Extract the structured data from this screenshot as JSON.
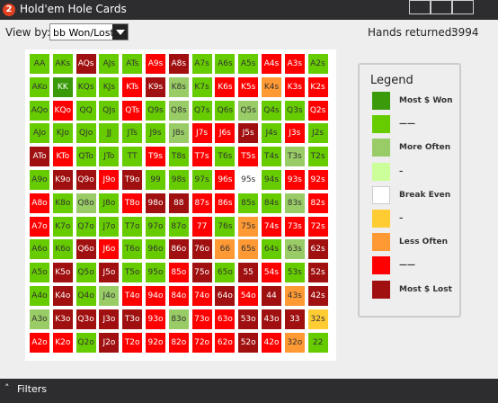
{
  "window": {
    "title": "Hold'em Hole Cards",
    "icon": "2"
  },
  "toolbar": {
    "view_by_label": "View by:",
    "view_by_value": "bb Won/Lost",
    "hands_label": "Hands returned:",
    "hands_value": "3994"
  },
  "legend": {
    "title": "Legend",
    "items": [
      {
        "label": "Most $ Won",
        "color": "#3a9a0a"
      },
      {
        "label": "——",
        "color": "#66cc00"
      },
      {
        "label": "More Often",
        "color": "#99cc66"
      },
      {
        "label": "–",
        "color": "#ccff99"
      },
      {
        "label": "Break Even",
        "color": "#ffffff"
      },
      {
        "label": "–",
        "color": "#ffcc33"
      },
      {
        "label": "Less Often",
        "color": "#ff9933"
      },
      {
        "label": "——",
        "color": "#ff0000"
      },
      {
        "label": "Most $ Lost",
        "color": "#a01010"
      }
    ]
  },
  "grid": {
    "rows": [
      [
        "AA",
        "AKs",
        "AQs",
        "AJs",
        "ATs",
        "A9s",
        "A8s",
        "A7s",
        "A6s",
        "A5s",
        "A4s",
        "A3s",
        "A2s"
      ],
      [
        "AKo",
        "KK",
        "KQs",
        "KJs",
        "KTs",
        "K9s",
        "K8s",
        "K7s",
        "K6s",
        "K5s",
        "K4s",
        "K3s",
        "K2s"
      ],
      [
        "AQo",
        "KQo",
        "QQ",
        "QJs",
        "QTs",
        "Q9s",
        "Q8s",
        "Q7s",
        "Q6s",
        "Q5s",
        "Q4s",
        "Q3s",
        "Q2s"
      ],
      [
        "AJo",
        "KJo",
        "QJo",
        "JJ",
        "JTs",
        "J9s",
        "J8s",
        "J7s",
        "J6s",
        "J5s",
        "J4s",
        "J3s",
        "J2s"
      ],
      [
        "ATo",
        "KTo",
        "QTo",
        "JTo",
        "TT",
        "T9s",
        "T8s",
        "T7s",
        "T6s",
        "T5s",
        "T4s",
        "T3s",
        "T2s"
      ],
      [
        "A9o",
        "K9o",
        "Q9o",
        "J9o",
        "T9o",
        "99",
        "98s",
        "97s",
        "96s",
        "95s",
        "94s",
        "93s",
        "92s"
      ],
      [
        "A8o",
        "K8o",
        "Q8o",
        "J8o",
        "T8o",
        "98o",
        "88",
        "87s",
        "86s",
        "85s",
        "84s",
        "83s",
        "82s"
      ],
      [
        "A7o",
        "K7o",
        "Q7o",
        "J7o",
        "T7o",
        "97o",
        "87o",
        "77",
        "76s",
        "75s",
        "74s",
        "73s",
        "72s"
      ],
      [
        "A6o",
        "K6o",
        "Q6o",
        "J6o",
        "T6o",
        "96o",
        "86o",
        "76o",
        "66",
        "65s",
        "64s",
        "63s",
        "62s"
      ],
      [
        "A5o",
        "K5o",
        "Q5o",
        "J5o",
        "T5o",
        "95o",
        "85o",
        "75o",
        "65o",
        "55",
        "54s",
        "53s",
        "52s"
      ],
      [
        "A4o",
        "K4o",
        "Q4o",
        "J4o",
        "T4o",
        "94o",
        "84o",
        "74o",
        "64o",
        "54o",
        "44",
        "43s",
        "42s"
      ],
      [
        "A3o",
        "K3o",
        "Q3o",
        "J3o",
        "T3o",
        "93o",
        "83o",
        "73o",
        "63o",
        "53o",
        "43o",
        "33",
        "32s"
      ],
      [
        "A2o",
        "K2o",
        "Q2o",
        "J2o",
        "T2o",
        "92o",
        "82o",
        "72o",
        "62o",
        "52o",
        "42o",
        "32o",
        "22"
      ]
    ],
    "colors": [
      [
        "#66cc00",
        "#66cc00",
        "#a01010",
        "#66cc00",
        "#66cc00",
        "#ff0000",
        "#a01010",
        "#66cc00",
        "#66cc00",
        "#66cc00",
        "#ff0000",
        "#ff0000",
        "#66cc00"
      ],
      [
        "#66cc00",
        "#3a9a0a",
        "#66cc00",
        "#66cc00",
        "#ff0000",
        "#a01010",
        "#99cc66",
        "#66cc00",
        "#ff0000",
        "#ff0000",
        "#ff9933",
        "#ff0000",
        "#ff0000"
      ],
      [
        "#66cc00",
        "#ff0000",
        "#66cc00",
        "#66cc00",
        "#ff0000",
        "#66cc00",
        "#99cc66",
        "#66cc00",
        "#66cc00",
        "#99cc66",
        "#66cc00",
        "#66cc00",
        "#ff0000"
      ],
      [
        "#66cc00",
        "#66cc00",
        "#66cc00",
        "#66cc00",
        "#66cc00",
        "#66cc00",
        "#99cc66",
        "#ff0000",
        "#ff0000",
        "#a01010",
        "#66cc00",
        "#ff0000",
        "#66cc00"
      ],
      [
        "#a01010",
        "#ff0000",
        "#66cc00",
        "#66cc00",
        "#66cc00",
        "#ff0000",
        "#66cc00",
        "#ff0000",
        "#66cc00",
        "#ff0000",
        "#66cc00",
        "#99cc66",
        "#66cc00"
      ],
      [
        "#66cc00",
        "#a01010",
        "#a01010",
        "#ff0000",
        "#a01010",
        "#66cc00",
        "#66cc00",
        "#66cc00",
        "#ff0000",
        "#ffffff",
        "#66cc00",
        "#ff0000",
        "#ff0000"
      ],
      [
        "#ff0000",
        "#66cc00",
        "#99cc66",
        "#66cc00",
        "#ff0000",
        "#a01010",
        "#a01010",
        "#ff0000",
        "#ff0000",
        "#66cc00",
        "#66cc00",
        "#99cc66",
        "#ff0000"
      ],
      [
        "#ff0000",
        "#66cc00",
        "#66cc00",
        "#66cc00",
        "#66cc00",
        "#66cc00",
        "#66cc00",
        "#ff0000",
        "#66cc00",
        "#ff9933",
        "#ff0000",
        "#ff0000",
        "#ff0000"
      ],
      [
        "#66cc00",
        "#66cc00",
        "#a01010",
        "#ff0000",
        "#66cc00",
        "#66cc00",
        "#a01010",
        "#a01010",
        "#ff9933",
        "#ff9933",
        "#66cc00",
        "#99cc66",
        "#a01010"
      ],
      [
        "#66cc00",
        "#a01010",
        "#66cc00",
        "#a01010",
        "#66cc00",
        "#66cc00",
        "#ff0000",
        "#a01010",
        "#66cc00",
        "#a01010",
        "#ff0000",
        "#66cc00",
        "#a01010"
      ],
      [
        "#66cc00",
        "#a01010",
        "#66cc00",
        "#99cc66",
        "#ff0000",
        "#ff0000",
        "#ff0000",
        "#ff0000",
        "#a01010",
        "#ff0000",
        "#a01010",
        "#ff9933",
        "#a01010"
      ],
      [
        "#99cc66",
        "#a01010",
        "#a01010",
        "#a01010",
        "#a01010",
        "#ff0000",
        "#99cc66",
        "#ff0000",
        "#ff0000",
        "#a01010",
        "#a01010",
        "#a01010",
        "#ffcc33"
      ],
      [
        "#ff0000",
        "#ff0000",
        "#66cc00",
        "#a01010",
        "#ff0000",
        "#ff0000",
        "#ff0000",
        "#ff0000",
        "#ff0000",
        "#a01010",
        "#ff0000",
        "#ff9933",
        "#66cc00"
      ]
    ]
  },
  "footer": {
    "filters": "Filters"
  }
}
